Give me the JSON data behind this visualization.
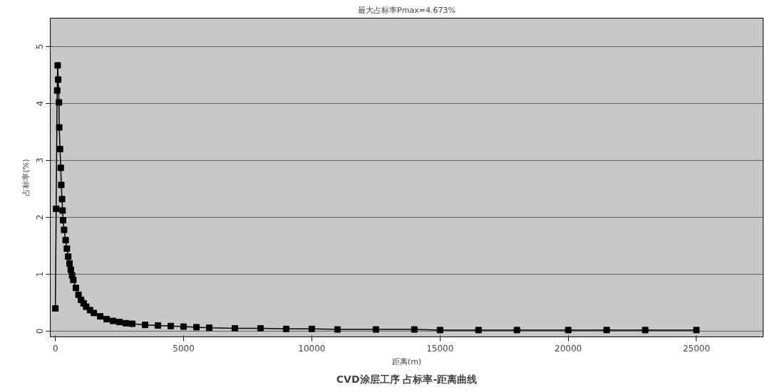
{
  "chart_data": {
    "type": "line",
    "title": "CVD涂层工序 占标率-距离曲线",
    "subtitle": "最大占标率Pmax=4.673%",
    "xlabel": "距离(m)",
    "ylabel": "占标率(%)",
    "x": [
      0,
      30,
      70,
      90,
      110,
      140,
      150,
      180,
      210,
      230,
      260,
      280,
      300,
      340,
      400,
      450,
      500,
      550,
      600,
      650,
      700,
      800,
      900,
      1000,
      1100,
      1200,
      1350,
      1500,
      1750,
      2000,
      2250,
      2500,
      2750,
      3000,
      3500,
      4000,
      4500,
      5000,
      5500,
      6000,
      7000,
      8000,
      9000,
      10000,
      11000,
      12500,
      14000,
      15000,
      16500,
      18000,
      20000,
      21500,
      23000,
      25000
    ],
    "series": [
      {
        "color": "#000000",
        "values": [
          0.4,
          2.15,
          4.23,
          4.67,
          4.42,
          4.02,
          3.58,
          3.2,
          2.87,
          2.57,
          2.32,
          2.12,
          1.95,
          1.78,
          1.6,
          1.45,
          1.31,
          1.19,
          1.08,
          0.98,
          0.9,
          0.76,
          0.64,
          0.55,
          0.49,
          0.43,
          0.37,
          0.32,
          0.26,
          0.21,
          0.18,
          0.16,
          0.14,
          0.13,
          0.11,
          0.1,
          0.09,
          0.08,
          0.07,
          0.06,
          0.05,
          0.05,
          0.04,
          0.04,
          0.03,
          0.03,
          0.03,
          0.02,
          0.02,
          0.02,
          0.02,
          0.02,
          0.02,
          0.02
        ]
      }
    ],
    "xlim": [
      -200,
      27600
    ],
    "ylim": [
      -0.1,
      5.5
    ],
    "xticks": [
      0,
      5000,
      10000,
      15000,
      20000,
      25000
    ],
    "yticks": [
      0,
      1,
      2,
      3,
      4,
      5
    ],
    "grid": "y",
    "marker": "square",
    "line_style": "solid"
  }
}
